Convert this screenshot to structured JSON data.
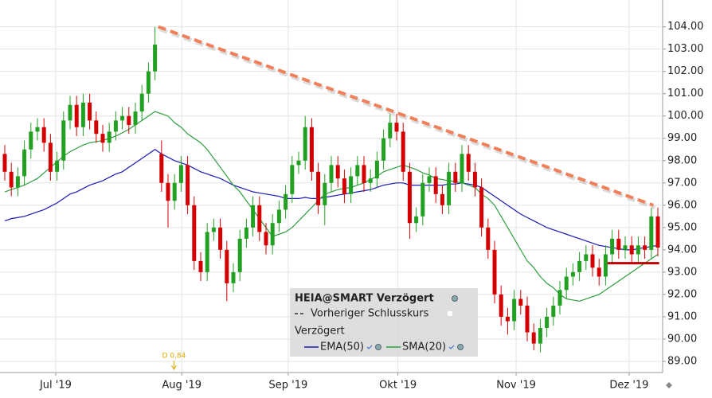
{
  "chart_data": {
    "type": "candlestick",
    "x": [
      0,
      1,
      2,
      3,
      4,
      5,
      6,
      7,
      8,
      9,
      10,
      11,
      12,
      13,
      14,
      15,
      16,
      17,
      18,
      19,
      20,
      21,
      22,
      23,
      24,
      25,
      26,
      27,
      28,
      29,
      30,
      31,
      32,
      33,
      34,
      35,
      36,
      37,
      38,
      39,
      40,
      41,
      42,
      43,
      44,
      45,
      46,
      47,
      48,
      49,
      50,
      51,
      52,
      53,
      54,
      55,
      56,
      57,
      58,
      59,
      60,
      61,
      62,
      63,
      64,
      65,
      66,
      67,
      68,
      69,
      70,
      71,
      72,
      73,
      74,
      75,
      76,
      77,
      78,
      79,
      80,
      81,
      82,
      83,
      84,
      85,
      86,
      87,
      88,
      89,
      90,
      91,
      92,
      93,
      94,
      95,
      96,
      97,
      98,
      99,
      100
    ],
    "open": [
      98.3,
      97.5,
      96.8,
      97.3,
      98.5,
      99.3,
      99.5,
      98.8,
      97.5,
      98.0,
      99.8,
      100.5,
      99.5,
      100.6,
      99.8,
      99.2,
      98.8,
      99.3,
      99.8,
      100.0,
      99.6,
      100.2,
      101.0,
      102.0,
      98.3,
      97.0,
      96.2,
      97.0,
      97.8,
      96.0,
      93.5,
      93.0,
      94.8,
      95.0,
      94.0,
      92.5,
      93.0,
      94.5,
      95.0,
      96.0,
      94.8,
      94.2,
      95.2,
      95.8,
      96.5,
      97.8,
      98.0,
      99.5,
      97.5,
      96.0,
      97.0,
      97.8,
      97.2,
      96.5,
      97.3,
      97.8,
      97.0,
      97.2,
      98.0,
      99.0,
      99.7,
      99.3,
      97.5,
      95.2,
      95.5,
      97.0,
      97.3,
      96.5,
      96.0,
      97.5,
      97.0,
      98.3,
      97.5,
      96.8,
      95.0,
      94.0,
      92.0,
      91.0,
      90.8,
      91.8,
      91.5,
      90.3,
      89.8,
      90.5,
      91.0,
      91.5,
      92.2,
      92.8,
      93.0,
      93.5,
      93.8,
      93.2,
      92.8,
      93.8,
      94.5,
      94.0,
      94.2,
      93.8,
      94.2,
      94.0,
      95.5
    ],
    "high": [
      98.7,
      97.9,
      97.7,
      98.9,
      99.7,
      99.9,
      99.9,
      99.2,
      98.4,
      100.2,
      100.9,
      100.9,
      101.0,
      101.0,
      100.2,
      99.6,
      99.7,
      100.2,
      100.4,
      100.4,
      100.6,
      101.4,
      102.4,
      104.0,
      98.9,
      97.4,
      97.4,
      98.2,
      98.2,
      96.4,
      93.9,
      95.2,
      95.4,
      95.4,
      94.4,
      93.4,
      94.9,
      95.4,
      96.4,
      96.4,
      95.2,
      95.6,
      96.2,
      96.9,
      98.2,
      98.4,
      100.0,
      99.9,
      97.9,
      97.4,
      98.2,
      98.2,
      97.6,
      97.7,
      98.2,
      98.2,
      97.6,
      98.4,
      99.4,
      100.1,
      100.1,
      99.7,
      97.9,
      95.9,
      97.4,
      97.7,
      97.7,
      96.9,
      97.9,
      97.9,
      98.7,
      98.7,
      97.9,
      97.2,
      95.4,
      94.4,
      92.4,
      91.4,
      92.2,
      92.2,
      91.9,
      90.7,
      90.9,
      91.4,
      91.9,
      92.6,
      93.2,
      93.4,
      93.9,
      94.2,
      94.2,
      93.6,
      94.2,
      94.9,
      94.9,
      94.6,
      94.6,
      94.6,
      94.6,
      95.9,
      95.9
    ],
    "low": [
      97.1,
      96.4,
      96.4,
      96.9,
      98.1,
      98.9,
      98.4,
      97.1,
      97.1,
      97.6,
      99.4,
      99.1,
      99.1,
      99.4,
      98.8,
      98.4,
      98.4,
      98.9,
      99.4,
      99.2,
      99.2,
      99.8,
      100.6,
      101.6,
      96.6,
      95.0,
      95.8,
      96.6,
      95.6,
      93.1,
      92.6,
      92.6,
      94.4,
      93.6,
      91.7,
      92.1,
      92.6,
      94.1,
      94.6,
      94.4,
      93.8,
      93.8,
      94.8,
      95.4,
      96.1,
      97.4,
      97.6,
      97.1,
      95.6,
      95.1,
      96.6,
      96.8,
      96.1,
      96.1,
      96.9,
      96.6,
      96.6,
      96.8,
      97.6,
      98.6,
      98.9,
      97.1,
      94.5,
      94.8,
      95.1,
      96.6,
      96.1,
      95.6,
      95.6,
      96.6,
      96.6,
      97.1,
      96.4,
      94.6,
      93.6,
      91.6,
      90.6,
      90.2,
      90.4,
      91.1,
      89.9,
      89.5,
      89.4,
      90.1,
      90.6,
      91.1,
      91.8,
      92.4,
      92.6,
      93.1,
      92.8,
      92.4,
      92.4,
      93.4,
      93.6,
      93.6,
      93.4,
      93.4,
      93.6,
      93.6,
      93.7
    ],
    "close": [
      97.5,
      96.8,
      97.3,
      98.5,
      99.3,
      99.5,
      98.8,
      97.5,
      98.0,
      99.8,
      100.5,
      99.5,
      100.6,
      99.8,
      99.2,
      98.8,
      99.3,
      99.8,
      100.0,
      99.6,
      100.2,
      101.0,
      102.0,
      103.2,
      97.0,
      96.2,
      97.0,
      97.8,
      96.0,
      93.5,
      93.0,
      94.8,
      95.0,
      94.0,
      92.5,
      93.0,
      94.5,
      95.0,
      96.0,
      94.8,
      94.2,
      95.2,
      95.8,
      96.5,
      97.8,
      98.0,
      99.5,
      97.5,
      96.0,
      97.0,
      97.8,
      97.2,
      96.5,
      97.3,
      97.8,
      97.0,
      97.2,
      98.0,
      99.0,
      99.7,
      99.3,
      97.5,
      95.2,
      95.5,
      97.0,
      97.3,
      96.5,
      96.0,
      97.5,
      97.0,
      98.3,
      97.5,
      96.8,
      95.0,
      94.0,
      92.0,
      91.0,
      90.8,
      91.8,
      91.5,
      90.3,
      89.8,
      90.5,
      91.0,
      91.5,
      92.2,
      92.8,
      93.0,
      93.5,
      93.8,
      93.2,
      92.8,
      93.8,
      94.5,
      94.0,
      94.2,
      93.8,
      94.2,
      94.0,
      95.5,
      94.1
    ],
    "up_color": "#22a022",
    "down_color": "#d40000",
    "series": [
      {
        "name": "EMA(50)",
        "color": "#1a1ab4",
        "values": [
          95.3,
          95.4,
          95.45,
          95.5,
          95.6,
          95.7,
          95.8,
          95.95,
          96.1,
          96.3,
          96.5,
          96.6,
          96.75,
          96.9,
          97.0,
          97.1,
          97.25,
          97.4,
          97.5,
          97.7,
          97.9,
          98.1,
          98.3,
          98.5,
          98.3,
          98.15,
          98.0,
          97.9,
          97.8,
          97.65,
          97.5,
          97.4,
          97.3,
          97.2,
          97.05,
          96.9,
          96.8,
          96.7,
          96.6,
          96.55,
          96.5,
          96.45,
          96.4,
          96.3,
          96.3,
          96.3,
          96.35,
          96.3,
          96.3,
          96.35,
          96.4,
          96.45,
          96.5,
          96.55,
          96.6,
          96.65,
          96.7,
          96.8,
          96.9,
          96.95,
          97.0,
          97.0,
          96.9,
          96.9,
          96.9,
          96.9,
          96.9,
          96.9,
          96.95,
          96.95,
          97.0,
          96.95,
          96.9,
          96.8,
          96.6,
          96.4,
          96.2,
          96.0,
          95.8,
          95.6,
          95.45,
          95.3,
          95.15,
          95.0,
          94.9,
          94.8,
          94.7,
          94.6,
          94.5,
          94.4,
          94.3,
          94.2,
          94.15,
          94.1,
          94.05,
          94.0,
          94.0,
          94.05,
          94.1,
          94.15,
          94.2
        ]
      },
      {
        "name": "SMA(20)",
        "color": "#2e9e3e",
        "values": [
          96.6,
          96.7,
          96.8,
          96.9,
          97.05,
          97.2,
          97.45,
          97.7,
          97.95,
          98.2,
          98.4,
          98.55,
          98.7,
          98.8,
          98.85,
          98.9,
          99.0,
          99.1,
          99.25,
          99.4,
          99.6,
          99.8,
          100.0,
          100.2,
          100.1,
          100.0,
          99.7,
          99.5,
          99.2,
          99.0,
          98.8,
          98.5,
          98.1,
          97.7,
          97.3,
          96.9,
          96.6,
          96.2,
          95.8,
          95.4,
          95.0,
          94.6,
          94.7,
          94.8,
          95.0,
          95.3,
          95.6,
          95.9,
          96.2,
          96.5,
          96.6,
          96.7,
          96.75,
          96.8,
          96.9,
          97.0,
          97.15,
          97.3,
          97.5,
          97.6,
          97.7,
          97.8,
          97.7,
          97.6,
          97.45,
          97.35,
          97.2,
          97.15,
          97.1,
          97.05,
          97.0,
          96.9,
          96.8,
          96.5,
          96.3,
          96.0,
          95.5,
          95.0,
          94.5,
          94.0,
          93.5,
          93.2,
          92.8,
          92.5,
          92.3,
          92.0,
          91.8,
          91.75,
          91.7,
          91.8,
          91.9,
          92.0,
          92.2,
          92.4,
          92.6,
          92.8,
          93.0,
          93.2,
          93.4,
          93.6,
          93.8
        ]
      }
    ],
    "trendline": {
      "color": "#f0805a",
      "x": [
        23.5,
        99.3
      ],
      "values": [
        104.0,
        96.0
      ]
    },
    "support": {
      "color": "#c00000",
      "x": [
        92.3,
        100.2
      ],
      "values": [
        93.4,
        93.4
      ]
    },
    "annotation": {
      "text": "D 0.84",
      "x": 25.9
    },
    "legend": {
      "title": "HEIA@SMART Verzögert",
      "previous_close": "Vorheriger Schlusskurs",
      "section": "Verzögert"
    },
    "xlim": [
      -0.73,
      100.73
    ],
    "ylim": [
      88.5,
      105.2
    ],
    "xticks": [
      {
        "value": 7.8,
        "label": "Jul '19"
      },
      {
        "value": 27.1,
        "label": "Aug '19"
      },
      {
        "value": 43.4,
        "label": "Sep '19"
      },
      {
        "value": 60.2,
        "label": "Okt '19"
      },
      {
        "value": 78.3,
        "label": "Nov '19"
      },
      {
        "value": 95.6,
        "label": "Dez '19"
      }
    ],
    "yticks": [
      {
        "value": 89,
        "label": "89.00"
      },
      {
        "value": 90,
        "label": "90.00"
      },
      {
        "value": 91,
        "label": "91.00"
      },
      {
        "value": 92,
        "label": "92.00"
      },
      {
        "value": 93,
        "label": "93.00"
      },
      {
        "value": 94,
        "label": "94.00"
      },
      {
        "value": 95,
        "label": "95.00"
      },
      {
        "value": 96,
        "label": "96.00"
      },
      {
        "value": 97,
        "label": "97.00"
      },
      {
        "value": 98,
        "label": "98.00"
      },
      {
        "value": 99,
        "label": "99.00"
      },
      {
        "value": 100,
        "label": "100.00"
      },
      {
        "value": 101,
        "label": "101.00"
      },
      {
        "value": 102,
        "label": "102.00"
      },
      {
        "value": 103,
        "label": "103.00"
      },
      {
        "value": 104,
        "label": "104.00"
      }
    ],
    "grid": true
  }
}
